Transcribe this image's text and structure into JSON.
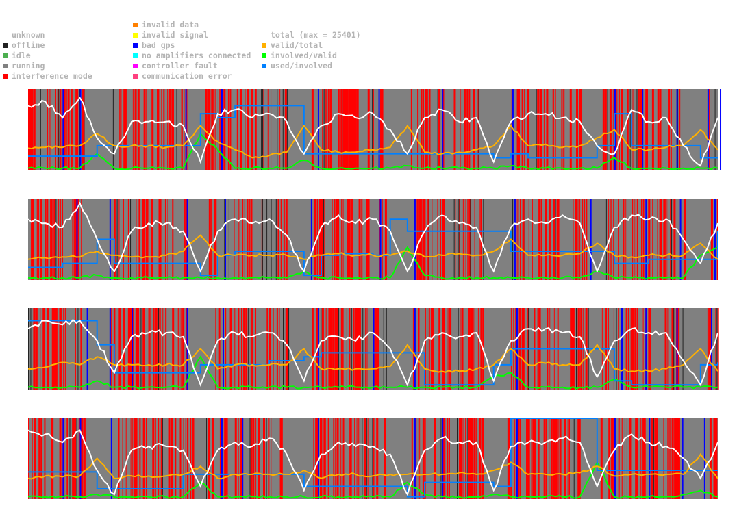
{
  "legend": {
    "col1": [
      {
        "label": "unknown",
        "color": null
      },
      {
        "label": "offline",
        "color": "#222222"
      },
      {
        "label": "idle",
        "color": "#4caf50"
      },
      {
        "label": "running",
        "color": "#808080"
      },
      {
        "label": "interference mode",
        "color": "#ff0000"
      }
    ],
    "col2": [
      {
        "label": "invalid data",
        "color": "#ff8000"
      },
      {
        "label": "invalid signal",
        "color": "#ffff00"
      },
      {
        "label": "bad gps",
        "color": "#0000ff"
      },
      {
        "label": "no amplifiers connected",
        "color": "#00ffff"
      },
      {
        "label": "controller fault",
        "color": "#ff00ff"
      },
      {
        "label": "communication error",
        "color": "#ff4080"
      }
    ],
    "col3": [
      {
        "label": "total (max = 25401)",
        "color": null
      },
      {
        "label": "valid/total",
        "color": "#ffb000"
      },
      {
        "label": "involved/valid",
        "color": "#00ff00"
      },
      {
        "label": "used/involved",
        "color": "#0080ff"
      }
    ]
  },
  "chart_data": {
    "type": "line",
    "x_range": [
      0,
      1000
    ],
    "y_range": [
      0,
      1
    ],
    "background_state": "running",
    "series_colors": {
      "total": "#ffffff",
      "valid/total": "#ffb000",
      "involved/valid": "#00ff00",
      "used/involved": "#0080ff"
    },
    "panels": [
      {
        "interference": [
          [
            0,
            83
          ],
          [
            123,
            232
          ],
          [
            257,
            376
          ],
          [
            411,
            515
          ],
          [
            555,
            654
          ],
          [
            699,
            804
          ],
          [
            833,
            952
          ],
          [
            987,
            1000
          ]
        ],
        "bad_gps": [
          50,
          75,
          228,
          280,
          420,
          508,
          600,
          702,
          850,
          890,
          940,
          985,
          1003
        ],
        "total": [
          0.8,
          0.85,
          0.65,
          0.9,
          0.4,
          0.2,
          0.6,
          0.6,
          0.6,
          0.55,
          0.1,
          0.7,
          0.75,
          0.65,
          0.7,
          0.6,
          0.2,
          0.55,
          0.7,
          0.65,
          0.7,
          0.5,
          0.2,
          0.65,
          0.75,
          0.6,
          0.65,
          0.1,
          0.6,
          0.7,
          0.7,
          0.65,
          0.6,
          0.3,
          0.2,
          0.75,
          0.6,
          0.65,
          0.3,
          0.05,
          0.65
        ],
        "valid_total": [
          0.27,
          0.28,
          0.28,
          0.3,
          0.45,
          0.3,
          0.3,
          0.3,
          0.28,
          0.3,
          0.55,
          0.35,
          0.25,
          0.15,
          0.18,
          0.22,
          0.55,
          0.25,
          0.22,
          0.22,
          0.25,
          0.28,
          0.55,
          0.22,
          0.2,
          0.22,
          0.25,
          0.3,
          0.55,
          0.3,
          0.32,
          0.28,
          0.3,
          0.4,
          0.5,
          0.25,
          0.25,
          0.28,
          0.3,
          0.5,
          0.25
        ],
        "involved_valid": [
          0.02,
          0.02,
          0.02,
          0.02,
          0.2,
          0.02,
          0.02,
          0.02,
          0.02,
          0.02,
          0.45,
          0.25,
          0.02,
          0.02,
          0.02,
          0.02,
          0.12,
          0.02,
          0.02,
          0.02,
          0.02,
          0.02,
          0.05,
          0.02,
          0.02,
          0.02,
          0.02,
          0.02,
          0.05,
          0.02,
          0.02,
          0.02,
          0.02,
          0.02,
          0.15,
          0.02,
          0.02,
          0.02,
          0.02,
          0.02,
          0.02
        ],
        "used_involved": [
          0.17,
          0.17,
          0.17,
          0.17,
          0.3,
          0.3,
          0.3,
          0.3,
          0.3,
          0.3,
          0.7,
          0.65,
          0.8,
          0.8,
          0.8,
          0.8,
          0.2,
          0.2,
          0.2,
          0.2,
          0.2,
          0.2,
          0.2,
          0.2,
          0.2,
          0.2,
          0.2,
          0.15,
          0.2,
          0.15,
          0.15,
          0.15,
          0.15,
          0.3,
          0.7,
          0.3,
          0.3,
          0.3,
          0.3,
          0.15,
          0.15
        ]
      },
      {
        "interference": [
          [
            0,
            80
          ],
          [
            125,
            235
          ],
          [
            262,
            380
          ],
          [
            415,
            520
          ],
          [
            560,
            660
          ],
          [
            702,
            810
          ],
          [
            838,
            955
          ],
          [
            990,
            1000
          ]
        ],
        "bad_gps": [
          70,
          118,
          230,
          285,
          410,
          510,
          560,
          705,
          815,
          895,
          945,
          995
        ],
        "total": [
          0.75,
          0.7,
          0.65,
          0.95,
          0.5,
          0.1,
          0.6,
          0.7,
          0.7,
          0.6,
          0.1,
          0.6,
          0.75,
          0.7,
          0.75,
          0.55,
          0.1,
          0.65,
          0.8,
          0.7,
          0.75,
          0.6,
          0.1,
          0.6,
          0.8,
          0.7,
          0.65,
          0.1,
          0.65,
          0.75,
          0.7,
          0.8,
          0.7,
          0.1,
          0.65,
          0.8,
          0.75,
          0.75,
          0.5,
          0.2,
          0.7
        ],
        "valid_total": [
          0.25,
          0.27,
          0.28,
          0.28,
          0.35,
          0.3,
          0.28,
          0.28,
          0.3,
          0.35,
          0.55,
          0.3,
          0.3,
          0.3,
          0.3,
          0.3,
          0.25,
          0.3,
          0.32,
          0.3,
          0.3,
          0.3,
          0.35,
          0.28,
          0.3,
          0.32,
          0.3,
          0.35,
          0.5,
          0.3,
          0.3,
          0.3,
          0.32,
          0.45,
          0.3,
          0.28,
          0.3,
          0.3,
          0.3,
          0.45,
          0.25
        ],
        "involved_valid": [
          0.02,
          0.02,
          0.02,
          0.02,
          0.05,
          0.02,
          0.02,
          0.02,
          0.02,
          0.02,
          0.02,
          0.02,
          0.02,
          0.02,
          0.02,
          0.02,
          0.1,
          0.02,
          0.02,
          0.02,
          0.02,
          0.02,
          0.4,
          0.05,
          0.02,
          0.02,
          0.02,
          0.02,
          0.02,
          0.02,
          0.02,
          0.02,
          0.02,
          0.1,
          0.02,
          0.02,
          0.02,
          0.02,
          0.02,
          0.3,
          0.4
        ],
        "used_involved": [
          0.15,
          0.15,
          0.2,
          0.2,
          0.5,
          0.2,
          0.2,
          0.2,
          0.2,
          0.2,
          0.05,
          0.3,
          0.35,
          0.35,
          0.35,
          0.35,
          0.05,
          0.3,
          0.32,
          0.32,
          0.3,
          0.75,
          0.6,
          0.6,
          0.6,
          0.6,
          0.6,
          0.6,
          0.35,
          0.35,
          0.35,
          0.35,
          0.35,
          0.35,
          0.2,
          0.2,
          0.25,
          0.25,
          0.25,
          0.25,
          0.6
        ]
      },
      {
        "interference": [
          [
            0,
            78
          ],
          [
            120,
            230
          ],
          [
            268,
            380
          ],
          [
            412,
            520
          ],
          [
            558,
            665
          ],
          [
            700,
            815
          ],
          [
            832,
            950
          ],
          [
            985,
            1000
          ]
        ],
        "bad_gps": [
          85,
          118,
          150,
          230,
          282,
          420,
          500,
          560,
          708,
          860,
          895,
          940,
          990
        ],
        "total": [
          0.75,
          0.85,
          0.8,
          0.85,
          0.6,
          0.2,
          0.65,
          0.7,
          0.7,
          0.65,
          0.05,
          0.6,
          0.7,
          0.65,
          0.7,
          0.55,
          0.1,
          0.6,
          0.65,
          0.6,
          0.7,
          0.5,
          0.05,
          0.6,
          0.7,
          0.65,
          0.7,
          0.1,
          0.6,
          0.75,
          0.75,
          0.7,
          0.65,
          0.15,
          0.6,
          0.75,
          0.7,
          0.7,
          0.35,
          0.05,
          0.7
        ],
        "valid_total": [
          0.25,
          0.27,
          0.33,
          0.3,
          0.4,
          0.3,
          0.3,
          0.3,
          0.3,
          0.3,
          0.5,
          0.25,
          0.3,
          0.3,
          0.3,
          0.3,
          0.5,
          0.25,
          0.25,
          0.25,
          0.25,
          0.28,
          0.55,
          0.25,
          0.22,
          0.22,
          0.25,
          0.3,
          0.5,
          0.3,
          0.32,
          0.3,
          0.3,
          0.55,
          0.25,
          0.22,
          0.22,
          0.25,
          0.3,
          0.5,
          0.22
        ],
        "involved_valid": [
          0.02,
          0.02,
          0.02,
          0.02,
          0.1,
          0.02,
          0.02,
          0.02,
          0.02,
          0.02,
          0.4,
          0.02,
          0.02,
          0.02,
          0.02,
          0.02,
          0.02,
          0.02,
          0.02,
          0.02,
          0.02,
          0.02,
          0.02,
          0.02,
          0.02,
          0.02,
          0.02,
          0.15,
          0.2,
          0.02,
          0.02,
          0.02,
          0.02,
          0.02,
          0.12,
          0.02,
          0.02,
          0.02,
          0.02,
          0.02,
          0.02
        ],
        "used_involved": [
          0.85,
          0.85,
          0.85,
          0.85,
          0.55,
          0.2,
          0.2,
          0.2,
          0.2,
          0.2,
          0.3,
          0.3,
          0.3,
          0.3,
          0.35,
          0.35,
          0.4,
          0.45,
          0.45,
          0.45,
          0.45,
          0.45,
          0.45,
          0.05,
          0.05,
          0.05,
          0.05,
          0.3,
          0.5,
          0.5,
          0.5,
          0.5,
          0.5,
          0.5,
          0.1,
          0.05,
          0.05,
          0.05,
          0.05,
          0.3,
          0.33
        ]
      },
      {
        "interference": [
          [
            0,
            85
          ],
          [
            127,
            238
          ],
          [
            255,
            372
          ],
          [
            410,
            518
          ],
          [
            552,
            660
          ],
          [
            695,
            800
          ],
          [
            830,
            948
          ],
          [
            988,
            1000
          ]
        ],
        "bad_gps": [
          50,
          75,
          120,
          280,
          310,
          420,
          560,
          600,
          708,
          850,
          900,
          948,
          980
        ],
        "total": [
          0.85,
          0.8,
          0.7,
          0.85,
          0.35,
          0.05,
          0.6,
          0.65,
          0.65,
          0.6,
          0.15,
          0.6,
          0.7,
          0.65,
          0.75,
          0.55,
          0.1,
          0.55,
          0.7,
          0.65,
          0.65,
          0.55,
          0.05,
          0.6,
          0.75,
          0.7,
          0.7,
          0.1,
          0.65,
          0.7,
          0.7,
          0.75,
          0.7,
          0.15,
          0.6,
          0.8,
          0.7,
          0.65,
          0.5,
          0.25,
          0.7
        ],
        "valid_total": [
          0.25,
          0.28,
          0.27,
          0.28,
          0.5,
          0.25,
          0.28,
          0.28,
          0.28,
          0.3,
          0.4,
          0.25,
          0.3,
          0.3,
          0.3,
          0.3,
          0.35,
          0.25,
          0.3,
          0.3,
          0.28,
          0.3,
          0.3,
          0.3,
          0.3,
          0.32,
          0.3,
          0.35,
          0.45,
          0.3,
          0.3,
          0.3,
          0.32,
          0.4,
          0.28,
          0.3,
          0.3,
          0.3,
          0.3,
          0.55,
          0.25
        ],
        "involved_valid": [
          0.02,
          0.02,
          0.02,
          0.02,
          0.05,
          0.02,
          0.02,
          0.02,
          0.02,
          0.02,
          0.2,
          0.02,
          0.02,
          0.02,
          0.02,
          0.02,
          0.02,
          0.02,
          0.02,
          0.02,
          0.02,
          0.02,
          0.2,
          0.05,
          0.02,
          0.02,
          0.02,
          0.05,
          0.02,
          0.02,
          0.02,
          0.02,
          0.02,
          0.45,
          0.02,
          0.02,
          0.02,
          0.02,
          0.05,
          0.1,
          0.02
        ],
        "used_involved": [
          0.33,
          0.33,
          0.33,
          0.33,
          0.12,
          0.12,
          0.12,
          0.12,
          0.12,
          0.3,
          0.3,
          0.3,
          0.3,
          0.3,
          0.3,
          0.3,
          0.15,
          0.15,
          0.15,
          0.15,
          0.15,
          0.15,
          0.02,
          0.2,
          0.2,
          0.2,
          0.2,
          0.15,
          1.0,
          1.0,
          1.0,
          1.0,
          1.0,
          0.35,
          0.35,
          0.35,
          0.35,
          0.35,
          0.35,
          0.35,
          0.35
        ]
      }
    ]
  }
}
